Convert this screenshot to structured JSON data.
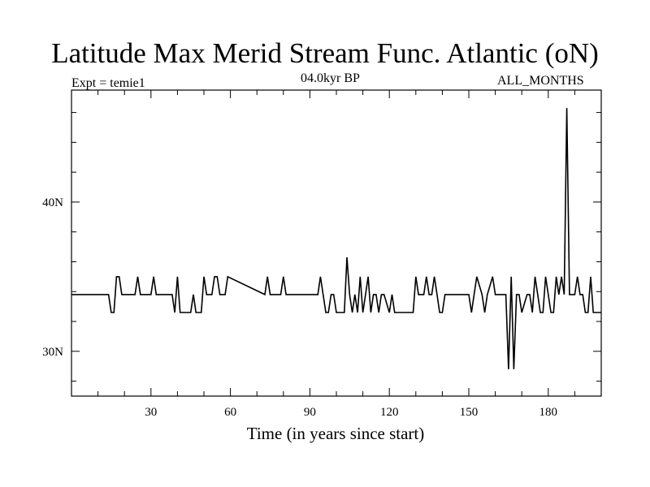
{
  "chart_data": {
    "type": "line",
    "title": "Latitude Max Merid Stream Func. Atlantic (oN)",
    "subtitle_left": "Expt = temie1",
    "subtitle_center": "04.0kyr BP",
    "subtitle_right": "ALL_MONTHS",
    "xlabel": "Time (in years since start)",
    "ylabel": "",
    "xlim": [
      0,
      200
    ],
    "ylim": [
      27,
      47.5
    ],
    "xticks": [
      30,
      60,
      90,
      120,
      150,
      180
    ],
    "xtick_labels": [
      "30",
      "60",
      "90",
      "120",
      "150",
      "180"
    ],
    "yticks": [
      30,
      40
    ],
    "ytick_labels": [
      "30N",
      "40N"
    ],
    "series": [
      {
        "name": "Latitude Max Merid Stream Func",
        "x": [
          0,
          14,
          15,
          16,
          17,
          18,
          19,
          24,
          25,
          26,
          30,
          31,
          32,
          37,
          38,
          39,
          40,
          41,
          42,
          45,
          46,
          47,
          49,
          50,
          51,
          53,
          54,
          55,
          56,
          58,
          59,
          73,
          74,
          75,
          79,
          80,
          81,
          93,
          94,
          95,
          96,
          97,
          98,
          99,
          100,
          103,
          104,
          105,
          106,
          107,
          108,
          109,
          110,
          111,
          112,
          113,
          114,
          115,
          116,
          117,
          118,
          120,
          121,
          122,
          123,
          124,
          125,
          129,
          130,
          131,
          133,
          134,
          135,
          136,
          137,
          138,
          139,
          140,
          141,
          142,
          149,
          150,
          151,
          152,
          153,
          155,
          156,
          157,
          159,
          160,
          164,
          165,
          166,
          167,
          168,
          169,
          170,
          172,
          173,
          174,
          175,
          176,
          177,
          178,
          179,
          181,
          182,
          183,
          184,
          185,
          186,
          187,
          188,
          189,
          190,
          191,
          192,
          193,
          194,
          195,
          196,
          197,
          198,
          200
        ],
        "values": [
          33.8,
          33.8,
          32.6,
          32.6,
          35.0,
          35.0,
          33.8,
          33.8,
          35.0,
          33.8,
          33.8,
          35.0,
          33.8,
          33.8,
          33.8,
          32.6,
          35.0,
          32.6,
          32.6,
          32.6,
          33.8,
          32.6,
          32.6,
          35.0,
          33.8,
          33.8,
          35.0,
          35.0,
          33.8,
          33.8,
          35.0,
          33.8,
          35.0,
          33.8,
          33.8,
          35.0,
          33.8,
          33.8,
          35.0,
          33.8,
          32.6,
          32.6,
          33.8,
          33.8,
          32.6,
          32.6,
          36.3,
          33.8,
          32.6,
          33.8,
          32.6,
          35.0,
          32.6,
          33.8,
          35.0,
          32.6,
          33.8,
          33.8,
          32.6,
          33.8,
          33.8,
          32.6,
          33.8,
          32.6,
          32.6,
          32.6,
          32.6,
          32.6,
          35.0,
          33.8,
          33.8,
          35.0,
          33.8,
          33.8,
          35.0,
          33.8,
          32.6,
          32.6,
          33.8,
          33.8,
          33.8,
          33.8,
          32.6,
          33.8,
          35.0,
          33.8,
          32.6,
          33.8,
          35.0,
          33.8,
          33.8,
          28.8,
          35.0,
          28.8,
          33.8,
          33.8,
          32.6,
          33.8,
          33.8,
          32.6,
          35.0,
          33.8,
          32.6,
          32.6,
          35.0,
          32.6,
          32.6,
          35.0,
          33.8,
          35.0,
          33.8,
          46.3,
          33.8,
          33.8,
          33.8,
          35.0,
          33.8,
          33.8,
          32.6,
          32.6,
          35.0,
          32.6,
          32.6,
          32.6
        ]
      }
    ]
  }
}
